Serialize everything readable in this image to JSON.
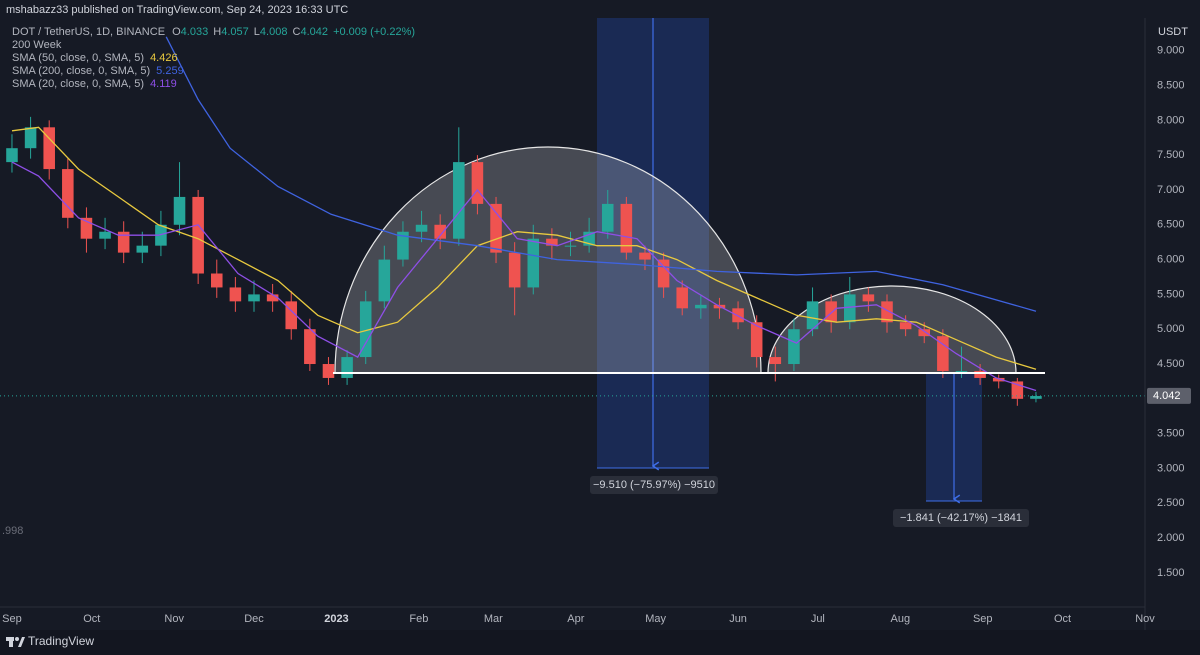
{
  "header": {
    "published": "mshabazz33 published on TradingView.com, Sep 24, 2023 16:33 UTC"
  },
  "footer": {
    "brand": "TradingView"
  },
  "chart_data": {
    "type": "candlestick",
    "symbol": "DOT / TetherUS, 1D, BINANCE",
    "ohlc_legend": [
      {
        "label": "O",
        "value": 4.033
      },
      {
        "label": "H",
        "value": 4.057
      },
      {
        "label": "L",
        "value": 4.008
      },
      {
        "label": "C",
        "value": 4.042
      }
    ],
    "change": "+0.009 (+0.22%)",
    "indicator": "200 Week",
    "currency": "USDT",
    "up_color": "#26a69a",
    "down_color": "#ef5350",
    "x": [
      0,
      7,
      14,
      21,
      28,
      35,
      42,
      49,
      56,
      63,
      70,
      77,
      84,
      91,
      98,
      105,
      112,
      119,
      126,
      133,
      140,
      147,
      154,
      161,
      168,
      175,
      182,
      189,
      196,
      203,
      210,
      217,
      224,
      231,
      238,
      245,
      252,
      259,
      266,
      273,
      280,
      287,
      294,
      301,
      308,
      315,
      322,
      329,
      336,
      343,
      350,
      357,
      364,
      371,
      378,
      385
    ],
    "open": [
      7.4,
      7.6,
      7.9,
      7.3,
      6.6,
      6.3,
      6.4,
      6.1,
      6.2,
      6.5,
      6.9,
      5.8,
      5.6,
      5.4,
      5.5,
      5.4,
      5.0,
      4.5,
      4.3,
      4.6,
      5.4,
      6.0,
      6.4,
      6.5,
      6.3,
      7.4,
      6.8,
      6.1,
      5.6,
      6.3,
      6.2,
      6.2,
      6.4,
      6.8,
      6.1,
      6.0,
      5.6,
      5.3,
      5.35,
      5.3,
      5.1,
      4.6,
      4.5,
      5.0,
      5.4,
      5.1,
      5.5,
      5.4,
      5.1,
      5.0,
      4.9,
      4.4,
      4.4,
      4.3,
      4.25,
      4.0
    ],
    "high": [
      7.8,
      8.05,
      8.0,
      7.45,
      6.75,
      6.6,
      6.55,
      6.4,
      6.7,
      7.4,
      7.0,
      6.0,
      5.75,
      5.7,
      5.65,
      5.55,
      5.15,
      4.6,
      4.7,
      5.55,
      6.2,
      6.55,
      6.7,
      6.65,
      7.9,
      7.5,
      6.9,
      6.25,
      6.5,
      6.45,
      6.4,
      6.6,
      7.0,
      6.9,
      6.2,
      6.1,
      5.7,
      5.5,
      5.45,
      5.4,
      5.2,
      4.75,
      5.15,
      5.6,
      5.5,
      5.75,
      5.6,
      5.5,
      5.2,
      5.1,
      5.0,
      4.75,
      4.5,
      4.35,
      4.3,
      4.1
    ],
    "low": [
      7.25,
      7.45,
      7.15,
      6.45,
      6.1,
      6.15,
      5.95,
      5.95,
      6.05,
      6.35,
      5.65,
      5.45,
      5.25,
      5.25,
      5.25,
      4.85,
      4.4,
      4.2,
      4.2,
      4.5,
      5.3,
      5.9,
      6.25,
      6.15,
      6.2,
      6.65,
      5.95,
      5.2,
      5.5,
      6.0,
      6.05,
      6.1,
      6.3,
      6.0,
      5.85,
      5.45,
      5.2,
      5.15,
      5.15,
      5.0,
      4.45,
      4.25,
      4.4,
      4.9,
      4.95,
      5.0,
      5.25,
      4.95,
      4.9,
      4.8,
      4.3,
      4.3,
      4.2,
      4.15,
      3.9,
      3.95
    ],
    "close": [
      7.6,
      7.9,
      7.3,
      6.6,
      6.3,
      6.4,
      6.1,
      6.2,
      6.5,
      6.9,
      5.8,
      5.6,
      5.4,
      5.5,
      5.4,
      5.0,
      4.5,
      4.3,
      4.6,
      5.4,
      6.0,
      6.4,
      6.5,
      6.3,
      7.4,
      6.8,
      6.1,
      5.6,
      6.3,
      6.2,
      6.2,
      6.4,
      6.8,
      6.1,
      6.0,
      5.6,
      5.3,
      5.35,
      5.3,
      5.1,
      4.6,
      4.5,
      5.0,
      5.4,
      5.1,
      5.5,
      5.4,
      5.1,
      5.0,
      4.9,
      4.4,
      4.4,
      4.3,
      4.25,
      4.0,
      4.04
    ],
    "last_price": 4.042,
    "series": [
      {
        "name": "SMA (50, close, 0, SMA, 5)",
        "color": "#e8c93f",
        "x": [
          0,
          10,
          25,
          40,
          55,
          70,
          85,
          100,
          115,
          130,
          145,
          160,
          175,
          190,
          205,
          220,
          235,
          250,
          265,
          280,
          295,
          310,
          325,
          340,
          355,
          370,
          385
        ],
        "values": [
          7.85,
          7.9,
          7.3,
          6.9,
          6.5,
          6.3,
          6.0,
          5.7,
          5.2,
          4.95,
          5.1,
          5.6,
          6.2,
          6.4,
          6.35,
          6.2,
          6.2,
          6.0,
          5.7,
          5.45,
          5.2,
          5.1,
          5.15,
          5.1,
          4.85,
          4.6,
          4.426
        ]
      },
      {
        "name": "SMA (200, close, 0, SMA, 5)",
        "color": "#3f63e0",
        "x": [
          58,
          70,
          82,
          100,
          120,
          145,
          175,
          205,
          235,
          265,
          295,
          325,
          350,
          385
        ],
        "values": [
          9.2,
          8.3,
          7.6,
          7.05,
          6.65,
          6.35,
          6.2,
          6.0,
          5.93,
          5.83,
          5.78,
          5.83,
          5.64,
          5.259
        ]
      },
      {
        "name": "SMA (20, close, 0, SMA, 5)",
        "color": "#8e4fe6",
        "x": [
          0,
          10,
          25,
          40,
          55,
          70,
          85,
          100,
          115,
          130,
          145,
          160,
          175,
          190,
          205,
          220,
          235,
          250,
          265,
          280,
          295,
          310,
          325,
          340,
          355,
          370,
          385
        ],
        "values": [
          7.4,
          7.2,
          6.6,
          6.35,
          6.35,
          6.5,
          5.8,
          5.45,
          4.9,
          4.6,
          5.6,
          6.3,
          7.0,
          6.3,
          6.2,
          6.4,
          6.3,
          5.7,
          5.35,
          5.05,
          4.8,
          5.3,
          5.35,
          5.05,
          4.65,
          4.3,
          4.119
        ]
      }
    ],
    "annotations": [
      "−9.510 (−75.97%) −9510",
      "−1.841 (−42.17%) −1841",
      ".998"
    ],
    "xlim": [
      -4.5,
      426
    ],
    "xticks": [
      {
        "value": 0,
        "label": "Sep"
      },
      {
        "value": 30,
        "label": "Oct"
      },
      {
        "value": 61,
        "label": "Nov"
      },
      {
        "value": 91,
        "label": "Dec"
      },
      {
        "value": 122,
        "label": "2023"
      },
      {
        "value": 153,
        "label": "Feb"
      },
      {
        "value": 181,
        "label": "Mar"
      },
      {
        "value": 212,
        "label": "Apr"
      },
      {
        "value": 242,
        "label": "May"
      },
      {
        "value": 273,
        "label": "Jun"
      },
      {
        "value": 303,
        "label": "Jul"
      },
      {
        "value": 334,
        "label": "Aug"
      },
      {
        "value": 365,
        "label": "Sep"
      },
      {
        "value": 395,
        "label": "Oct"
      },
      {
        "value": 426,
        "label": "Nov"
      }
    ],
    "ylim": [
      1.01,
      9.47
    ],
    "yticks": [
      {
        "value": 1.5,
        "label": "1.500"
      },
      {
        "value": 2,
        "label": "2.000"
      },
      {
        "value": 2.5,
        "label": "2.500"
      },
      {
        "value": 3,
        "label": "3.000"
      },
      {
        "value": 3.5,
        "label": "3.500"
      },
      {
        "value": 4,
        "label": "4.000"
      },
      {
        "value": 4.5,
        "label": "4.500"
      },
      {
        "value": 5,
        "label": "5.000"
      },
      {
        "value": 5.5,
        "label": "5.500"
      },
      {
        "value": 6,
        "label": "6.000"
      },
      {
        "value": 6.5,
        "label": "6.500"
      },
      {
        "value": 7,
        "label": "7.000"
      },
      {
        "value": 7.5,
        "label": "7.500"
      },
      {
        "value": 8,
        "label": "8.000"
      },
      {
        "value": 8.5,
        "label": "8.500"
      },
      {
        "value": 9,
        "label": "9.000"
      }
    ],
    "grid": false
  }
}
